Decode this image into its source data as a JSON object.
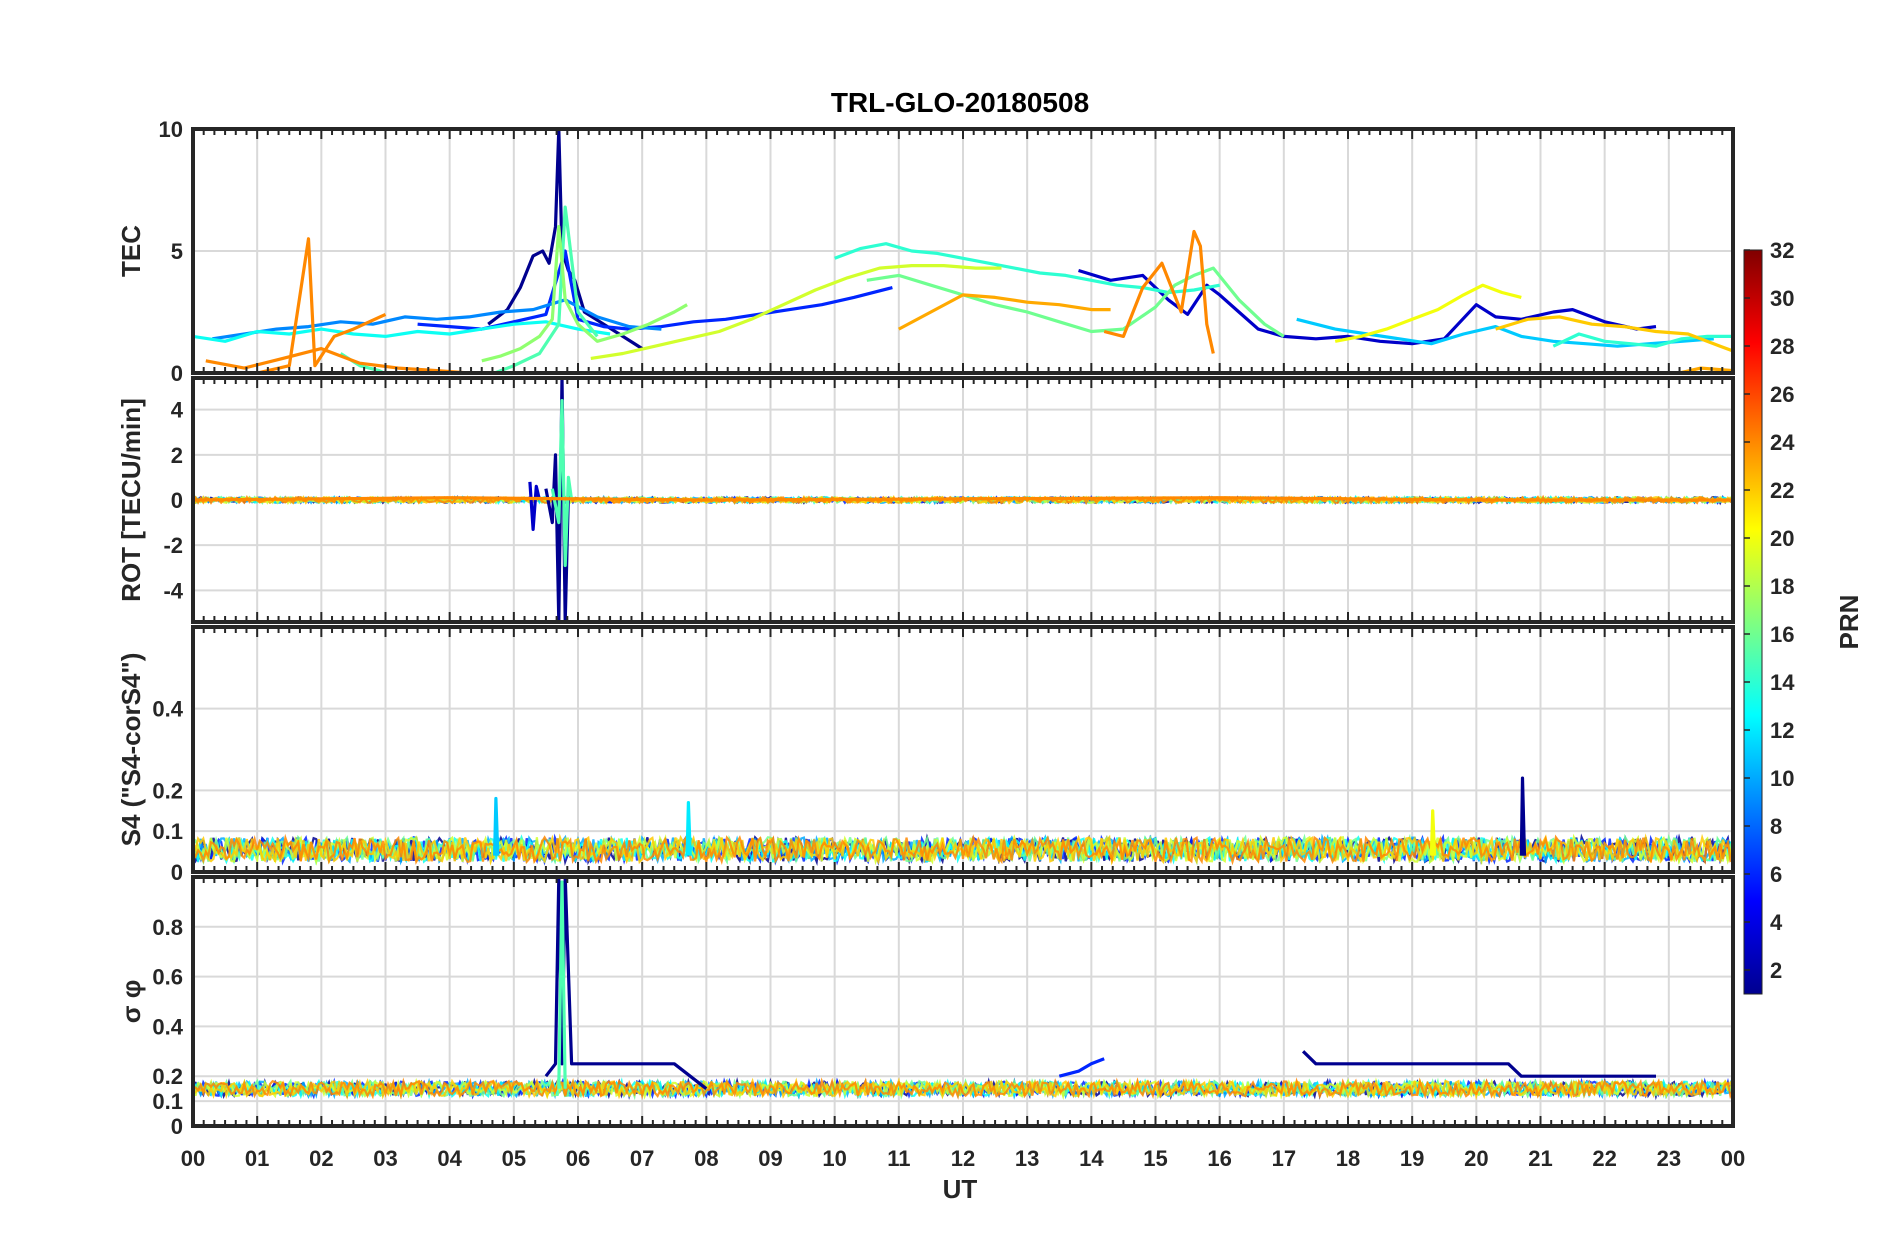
{
  "figure": {
    "title": "TRL-GLO-20180508",
    "xlabel": "UT",
    "x_ticks": [
      "00",
      "01",
      "02",
      "03",
      "04",
      "05",
      "06",
      "07",
      "08",
      "09",
      "10",
      "11",
      "12",
      "13",
      "14",
      "15",
      "16",
      "17",
      "18",
      "19",
      "20",
      "21",
      "22",
      "23",
      "00"
    ]
  },
  "colorbar": {
    "label": "PRN",
    "range": [
      1,
      32
    ],
    "ticks": [
      "2",
      "4",
      "6",
      "8",
      "10",
      "12",
      "14",
      "16",
      "18",
      "20",
      "22",
      "24",
      "26",
      "28",
      "30",
      "32"
    ],
    "colormap": "jet",
    "colors": [
      "#00008f",
      "#0000ff",
      "#0080ff",
      "#00ffff",
      "#80ff80",
      "#ffff00",
      "#ff8000",
      "#ff0000",
      "#800000"
    ]
  },
  "chart_data": [
    {
      "type": "line",
      "panel": "TEC",
      "ylabel": "TEC",
      "ylim": [
        0,
        10
      ],
      "y_ticks": [
        "0",
        "5",
        "10"
      ],
      "xlim": [
        0,
        24
      ],
      "grid": true,
      "series": [
        {
          "prn": 1,
          "x": [
            4.6,
            4.9,
            5.1,
            5.3,
            5.45,
            5.55,
            5.65,
            5.7,
            5.75,
            5.85,
            5.95,
            6.1,
            6.4,
            6.7,
            7.0
          ],
          "y": [
            2.0,
            2.6,
            3.5,
            4.8,
            5.0,
            4.5,
            6.0,
            10.0,
            5.0,
            4.2,
            3.8,
            2.5,
            2.0,
            1.5,
            1.0
          ]
        },
        {
          "prn": 3,
          "x": [
            13.8,
            14.3,
            14.8,
            15.2,
            15.5,
            15.8,
            16.0,
            16.3,
            16.6,
            17.0,
            17.5,
            18.0,
            18.5,
            19.0,
            19.5,
            20.0,
            20.3,
            20.7,
            21.2,
            21.5,
            22.0,
            22.5,
            22.8
          ],
          "y": [
            4.2,
            3.8,
            4.0,
            3.0,
            2.4,
            3.6,
            3.2,
            2.5,
            1.8,
            1.5,
            1.4,
            1.5,
            1.3,
            1.2,
            1.4,
            2.8,
            2.3,
            2.2,
            2.5,
            2.6,
            2.1,
            1.8,
            1.9
          ]
        },
        {
          "prn": 6,
          "x": [
            3.5,
            4.0,
            4.5,
            5.0,
            5.5,
            5.8,
            6.0,
            6.4,
            6.8,
            7.3,
            7.8,
            8.3,
            8.8,
            9.3,
            9.8,
            10.3,
            10.9
          ],
          "y": [
            2.0,
            1.9,
            1.8,
            2.1,
            2.4,
            5.0,
            2.2,
            1.9,
            1.8,
            1.9,
            2.1,
            2.2,
            2.4,
            2.6,
            2.8,
            3.1,
            3.5
          ]
        },
        {
          "prn": 9,
          "x": [
            0.3,
            0.8,
            1.3,
            1.8,
            2.3,
            2.8,
            3.3,
            3.8,
            4.3,
            4.8,
            5.3,
            5.8,
            6.3,
            6.8,
            7.3
          ],
          "y": [
            1.4,
            1.6,
            1.8,
            1.9,
            2.1,
            2.0,
            2.3,
            2.2,
            2.3,
            2.5,
            2.6,
            3.0,
            2.3,
            1.9,
            1.8
          ]
        },
        {
          "prn": 11,
          "x": [
            17.2,
            17.8,
            18.3,
            18.8,
            19.3,
            19.8,
            20.3,
            20.7,
            21.2,
            21.7,
            22.2,
            22.7,
            23.2,
            23.7
          ],
          "y": [
            2.2,
            1.8,
            1.6,
            1.4,
            1.2,
            1.6,
            1.9,
            1.5,
            1.3,
            1.2,
            1.1,
            1.2,
            1.3,
            1.4
          ]
        },
        {
          "prn": 13,
          "x": [
            0.0,
            0.5,
            1.0,
            1.5,
            2.0,
            2.5,
            3.0,
            3.5,
            4.0,
            4.5,
            5.0,
            5.5,
            6.0,
            6.5
          ],
          "y": [
            1.5,
            1.3,
            1.7,
            1.6,
            1.8,
            1.6,
            1.5,
            1.7,
            1.6,
            1.8,
            2.0,
            2.1,
            1.8,
            1.6
          ]
        },
        {
          "prn": 14,
          "x": [
            10.0,
            10.4,
            10.8,
            11.2,
            11.6,
            12.0,
            12.4,
            12.8,
            13.2,
            13.6,
            14.0,
            14.4,
            14.8,
            15.2,
            15.6,
            16.0
          ],
          "y": [
            4.7,
            5.1,
            5.3,
            5.0,
            4.9,
            4.7,
            4.5,
            4.3,
            4.1,
            4.0,
            3.8,
            3.6,
            3.5,
            3.3,
            3.4,
            3.6
          ]
        },
        {
          "prn": 14,
          "x": [
            21.2,
            21.6,
            22.0,
            22.4,
            22.8,
            23.2,
            23.6,
            24.0
          ],
          "y": [
            1.1,
            1.6,
            1.3,
            1.2,
            1.1,
            1.4,
            1.5,
            1.5
          ]
        },
        {
          "prn": 15,
          "x": [
            2.3,
            2.6,
            2.9,
            3.2,
            3.5,
            3.8,
            4.1,
            4.4,
            4.7,
            5.0,
            5.4,
            5.7,
            5.8,
            6.0,
            6.3
          ],
          "y": [
            0.8,
            0.3,
            0.1,
            -0.3,
            -0.4,
            -0.4,
            -0.3,
            -0.4,
            0.0,
            0.3,
            0.8,
            2.0,
            6.8,
            2.5,
            1.5
          ]
        },
        {
          "prn": 16,
          "x": [
            10.5,
            11.0,
            11.5,
            12.0,
            12.5,
            13.0,
            13.5,
            14.0,
            14.5,
            15.0,
            15.3,
            15.6,
            15.9,
            16.3,
            16.7,
            17.0
          ],
          "y": [
            3.8,
            4.0,
            3.6,
            3.2,
            2.8,
            2.5,
            2.1,
            1.7,
            1.8,
            2.7,
            3.6,
            4.0,
            4.3,
            3.0,
            2.0,
            1.5
          ]
        },
        {
          "prn": 17,
          "x": [
            4.5,
            4.8,
            5.1,
            5.4,
            5.6,
            5.7,
            5.8,
            6.0,
            6.3,
            6.7,
            7.1,
            7.5,
            7.7
          ],
          "y": [
            0.5,
            0.7,
            1.0,
            1.5,
            2.2,
            6.0,
            3.0,
            2.0,
            1.3,
            1.6,
            2.0,
            2.5,
            2.8
          ]
        },
        {
          "prn": 19,
          "x": [
            6.2,
            6.7,
            7.2,
            7.7,
            8.2,
            8.7,
            9.2,
            9.7,
            10.2,
            10.7,
            11.2,
            11.7,
            12.2,
            12.6
          ],
          "y": [
            0.6,
            0.8,
            1.1,
            1.4,
            1.7,
            2.2,
            2.8,
            3.4,
            3.9,
            4.3,
            4.4,
            4.4,
            4.3,
            4.3
          ]
        },
        {
          "prn": 20,
          "x": [
            17.8,
            18.2,
            18.6,
            19.0,
            19.4,
            19.8,
            20.1,
            20.4,
            20.7
          ],
          "y": [
            1.3,
            1.5,
            1.8,
            2.2,
            2.6,
            3.2,
            3.6,
            3.3,
            3.1
          ]
        },
        {
          "prn": 22,
          "x": [
            20.3,
            20.8,
            21.3,
            21.8,
            22.3,
            22.8,
            23.3,
            23.8,
            24.0
          ],
          "y": [
            1.8,
            2.2,
            2.3,
            2.0,
            1.9,
            1.7,
            1.6,
            1.1,
            0.9
          ]
        },
        {
          "prn": 23,
          "x": [
            11.0,
            11.5,
            12.0,
            12.5,
            13.0,
            13.5,
            14.0,
            14.3
          ],
          "y": [
            1.8,
            2.5,
            3.2,
            3.1,
            2.9,
            2.8,
            2.6,
            2.6
          ]
        },
        {
          "prn": 23,
          "x": [
            21.5,
            22.0,
            22.5,
            23.0,
            23.5,
            24.0
          ],
          "y": [
            -0.3,
            -0.1,
            0.0,
            -0.1,
            0.2,
            0.1
          ]
        },
        {
          "prn": 24,
          "x": [
            0.0,
            0.5,
            1.0,
            1.5,
            1.8,
            1.9,
            2.2,
            2.5,
            3.0
          ],
          "y": [
            -0.3,
            -0.2,
            0.0,
            0.3,
            5.5,
            0.3,
            1.5,
            1.8,
            2.4
          ]
        },
        {
          "prn": 24,
          "x": [
            0.2,
            0.8,
            1.4,
            2.0,
            2.6,
            3.2,
            3.8,
            4.3
          ],
          "y": [
            0.5,
            0.2,
            0.6,
            1.0,
            0.4,
            0.2,
            0.1,
            0.0
          ]
        },
        {
          "prn": 24,
          "x": [
            14.2,
            14.5,
            14.8,
            15.1,
            15.4,
            15.6,
            15.7,
            15.8,
            15.9
          ],
          "y": [
            1.7,
            1.5,
            3.5,
            4.5,
            2.5,
            5.8,
            5.2,
            2.0,
            0.8
          ]
        }
      ]
    },
    {
      "type": "line",
      "panel": "ROT",
      "ylabel": "ROT [TECU/min]",
      "ylim": [
        -5.4,
        5.4
      ],
      "y_ticks": [
        "-4",
        "-2",
        "0",
        "2",
        "4"
      ],
      "xlim": [
        0,
        24
      ],
      "grid": true,
      "series": [
        {
          "prn": 1,
          "x": [
            5.5,
            5.6,
            5.65,
            5.7,
            5.75,
            5.8,
            5.85
          ],
          "y": [
            0.5,
            -1.0,
            2.0,
            -5.4,
            5.4,
            -5.4,
            0.3
          ]
        },
        {
          "prn": 3,
          "x": [
            5.25,
            5.3,
            5.35,
            5.4
          ],
          "y": [
            0.8,
            -1.3,
            0.6,
            0.0
          ]
        },
        {
          "prn": 15,
          "x": [
            5.6,
            5.7,
            5.75,
            5.8,
            5.85,
            5.9
          ],
          "y": [
            0.5,
            -1.0,
            4.4,
            -2.9,
            1.0,
            0.0
          ]
        },
        {
          "prn": 24,
          "x": [
            0.0,
            4.0,
            8.0,
            12.0,
            16.0,
            20.0,
            24.0
          ],
          "y": [
            0.0,
            0.1,
            0.0,
            0.05,
            0.1,
            0.0,
            0.0
          ]
        }
      ]
    },
    {
      "type": "line",
      "panel": "S4",
      "ylabel": "S4 (\"S4-corS4\")",
      "ylim": [
        0,
        0.6
      ],
      "y_ticks": [
        "0",
        "0.1",
        "0.2",
        "0.4"
      ],
      "xlim": [
        0,
        24
      ],
      "grid": true,
      "series": [
        {
          "prn": 1,
          "x": [
            20.7,
            20.72,
            20.75
          ],
          "y": [
            0.04,
            0.23,
            0.04
          ]
        },
        {
          "prn": 11,
          "x": [
            4.7,
            4.72,
            4.75
          ],
          "y": [
            0.04,
            0.18,
            0.04
          ]
        },
        {
          "prn": 12,
          "x": [
            7.7,
            7.72,
            7.75
          ],
          "y": [
            0.04,
            0.17,
            0.04
          ]
        },
        {
          "prn": 20,
          "x": [
            19.3,
            19.32,
            19.35
          ],
          "y": [
            0.04,
            0.15,
            0.04
          ]
        }
      ]
    },
    {
      "type": "line",
      "panel": "sigma_phi",
      "ylabel": "σ φ",
      "ylim": [
        0,
        1.0
      ],
      "y_ticks": [
        "0",
        "0.1",
        "0.2",
        "0.4",
        "0.6",
        "0.8"
      ],
      "xlim": [
        0,
        24
      ],
      "grid": true,
      "series": [
        {
          "prn": 1,
          "x": [
            5.5,
            5.65,
            5.7,
            5.75,
            5.8,
            5.9,
            6.5,
            7.5,
            8.0
          ],
          "y": [
            0.2,
            0.25,
            1.0,
            0.25,
            1.0,
            0.25,
            0.25,
            0.25,
            0.15
          ]
        },
        {
          "prn": 1,
          "x": [
            17.3,
            17.5,
            18.5,
            19.5,
            20.5,
            20.7,
            21.5,
            22.5,
            22.8
          ],
          "y": [
            0.3,
            0.25,
            0.25,
            0.25,
            0.25,
            0.2,
            0.2,
            0.2,
            0.2
          ]
        },
        {
          "prn": 6,
          "x": [
            13.5,
            13.8,
            14.0,
            14.2
          ],
          "y": [
            0.2,
            0.22,
            0.25,
            0.27
          ]
        },
        {
          "prn": 15,
          "x": [
            5.7,
            5.75,
            5.8
          ],
          "y": [
            0.15,
            0.98,
            0.15
          ]
        }
      ]
    }
  ]
}
